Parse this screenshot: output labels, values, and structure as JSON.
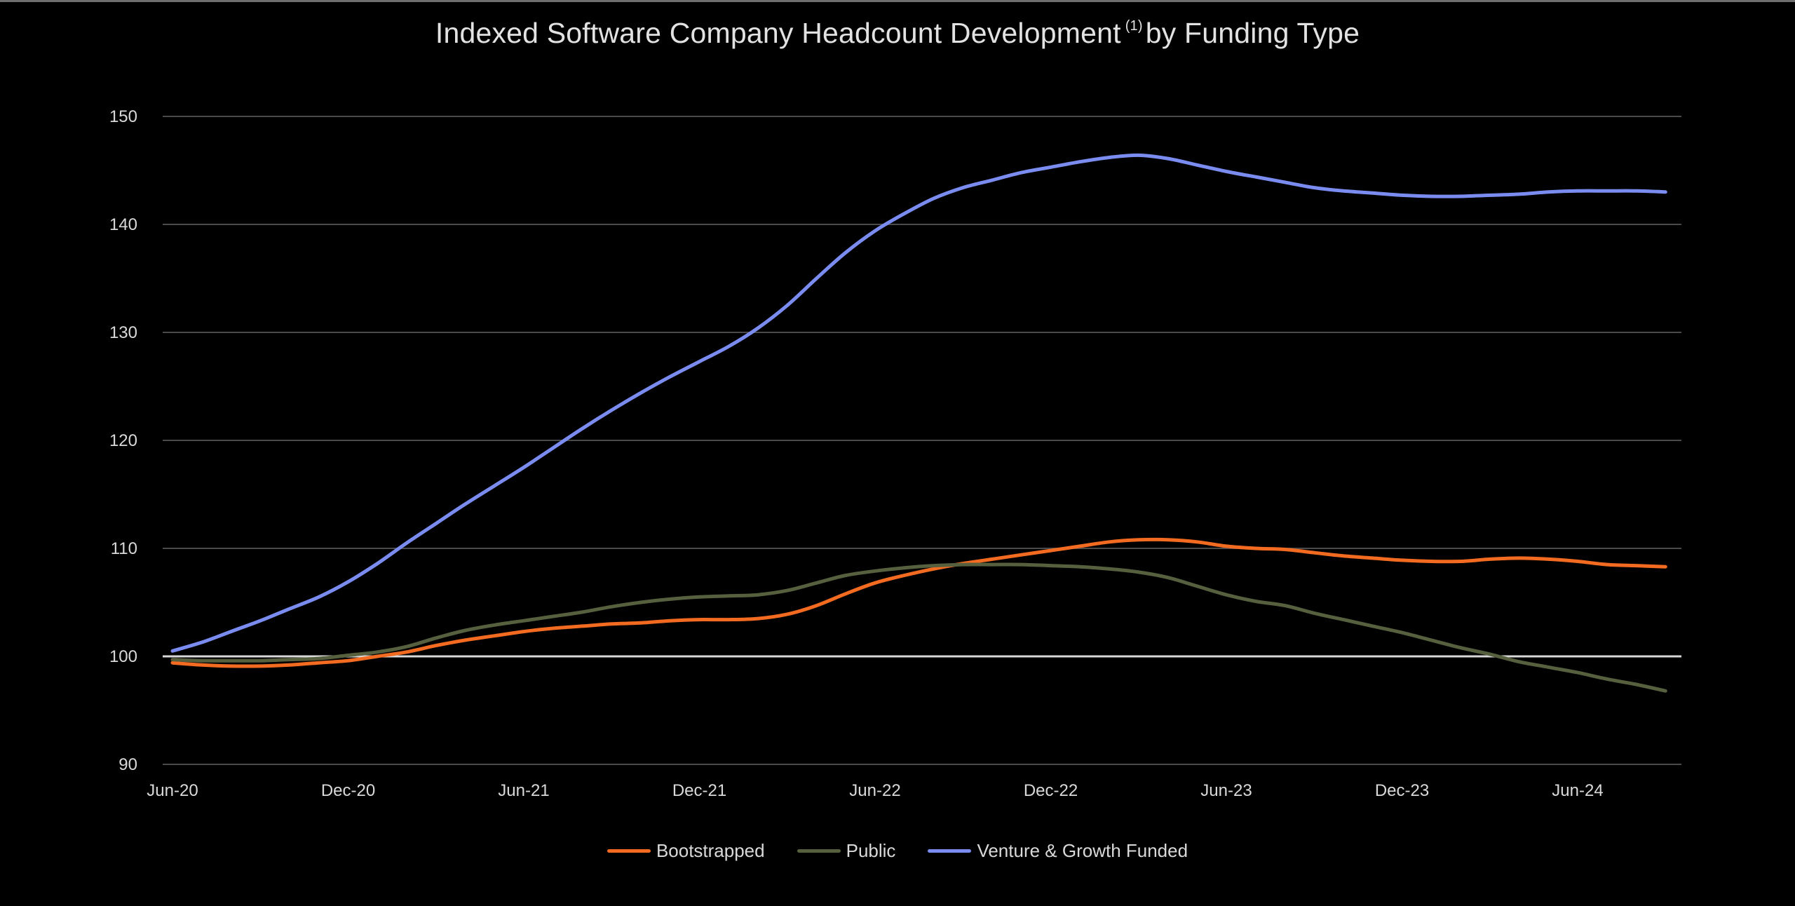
{
  "chart_data": {
    "type": "line",
    "title": "Indexed Software Company Headcount Development",
    "title_footnote": "(1)",
    "title_suffix": "by Funding Type",
    "xlabel": "",
    "ylabel": "",
    "ylim": [
      90,
      150
    ],
    "yticks": [
      90,
      100,
      110,
      120,
      130,
      140,
      150
    ],
    "xticks": [
      "Jun-20",
      "Dec-20",
      "Jun-21",
      "Dec-21",
      "Jun-22",
      "Dec-22",
      "Jun-23",
      "Dec-23",
      "Jun-24"
    ],
    "x_months_from_first": [
      0,
      1,
      2,
      3,
      4,
      5,
      6,
      7,
      8,
      9,
      10,
      11,
      12,
      13,
      14,
      15,
      16,
      17,
      18,
      19,
      20,
      21,
      22,
      23,
      24,
      25,
      26,
      27,
      28,
      29,
      30,
      31,
      32,
      33,
      34,
      35,
      36,
      37,
      38,
      39,
      40,
      41,
      42,
      43,
      44,
      45,
      46,
      47,
      48,
      49,
      50,
      51
    ],
    "grid": true,
    "reference_line": 100,
    "legend_position": "bottom",
    "series": [
      {
        "name": "Bootstrapped",
        "color": "#f26b21",
        "values": [
          99.4,
          99.2,
          99.1,
          99.1,
          99.2,
          99.4,
          99.6,
          100.0,
          100.4,
          101.0,
          101.5,
          101.9,
          102.3,
          102.6,
          102.8,
          103.0,
          103.1,
          103.3,
          103.4,
          103.4,
          103.5,
          103.9,
          104.7,
          105.8,
          106.8,
          107.5,
          108.1,
          108.6,
          109.0,
          109.4,
          109.8,
          110.2,
          110.6,
          110.8,
          110.8,
          110.6,
          110.2,
          110.0,
          109.9,
          109.6,
          109.3,
          109.1,
          108.9,
          108.8,
          108.8,
          109.0,
          109.1,
          109.0,
          108.8,
          108.5,
          108.4,
          108.3
        ]
      },
      {
        "name": "Public",
        "color": "#56603f",
        "values": [
          99.7,
          99.6,
          99.6,
          99.6,
          99.7,
          99.8,
          100.1,
          100.4,
          100.9,
          101.7,
          102.4,
          102.9,
          103.3,
          103.7,
          104.1,
          104.6,
          105.0,
          105.3,
          105.5,
          105.6,
          105.7,
          106.1,
          106.8,
          107.5,
          107.9,
          108.2,
          108.4,
          108.5,
          108.5,
          108.5,
          108.4,
          108.3,
          108.1,
          107.8,
          107.3,
          106.5,
          105.7,
          105.1,
          104.7,
          104.0,
          103.4,
          102.8,
          102.2,
          101.5,
          100.8,
          100.2,
          99.5,
          99.0,
          98.5,
          97.9,
          97.4,
          96.8
        ]
      },
      {
        "name": "Venture & Growth Funded",
        "color": "#7b8cf0",
        "values": [
          100.5,
          101.3,
          102.3,
          103.3,
          104.4,
          105.5,
          106.9,
          108.6,
          110.5,
          112.3,
          114.1,
          115.8,
          117.5,
          119.3,
          121.1,
          122.8,
          124.4,
          125.9,
          127.3,
          128.7,
          130.4,
          132.5,
          135.0,
          137.4,
          139.4,
          141.0,
          142.4,
          143.4,
          144.1,
          144.8,
          145.3,
          145.8,
          146.2,
          146.4,
          146.1,
          145.5,
          144.9,
          144.4,
          143.9,
          143.4,
          143.1,
          142.9,
          142.7,
          142.6,
          142.6,
          142.7,
          142.8,
          143.0,
          143.1,
          143.1,
          143.1,
          143.0
        ]
      }
    ]
  }
}
